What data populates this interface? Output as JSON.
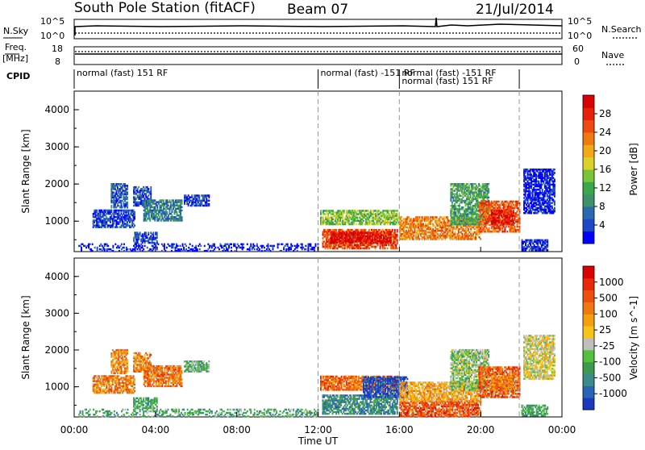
{
  "header": {
    "station": "South Pole Station (fitACF)",
    "beam": "Beam 07",
    "date": "21/Jul/2014"
  },
  "strips": {
    "nsky_label": "N.Sky",
    "nsearch_label": "N.Search",
    "nsky_ticks": [
      "10^5",
      "10^0"
    ],
    "nsearch_ticks": [
      "10^5",
      "10^0"
    ],
    "freq_label_top": "Freq.",
    "freq_label_bottom": "[MHz]",
    "freq_ticks": [
      "18",
      "8"
    ],
    "nave_label": "Nave",
    "nave_ticks": [
      "60",
      "0"
    ],
    "cpid_label": "CPID",
    "cpid_segments": [
      {
        "text": "normal (fast) 151 RF",
        "start_h": 0,
        "row": 0
      },
      {
        "text": "normal (fast) -151 RF",
        "start_h": 12.0,
        "row": 0
      },
      {
        "text": "normal (fast) -151 RF",
        "start_h": 16.0,
        "row": 0
      },
      {
        "text": "normal (fast) 151 RF",
        "start_h": 16.0,
        "row": 1
      }
    ],
    "cpid_dividers_h": [
      12.0,
      16.0,
      21.9
    ]
  },
  "chart_data": [
    {
      "type": "heatmap",
      "panel": "power",
      "ylabel": "Slant Range [km]",
      "xlabel": "Time UT",
      "xlim": [
        0,
        24
      ],
      "ylim": [
        180,
        4500
      ],
      "x_ticks": [
        "00:00",
        "04:00",
        "08:00",
        "12:00",
        "16:00",
        "20:00",
        "00:00"
      ],
      "y_ticks": [
        1000,
        2000,
        3000,
        4000
      ],
      "colorbar": {
        "label": "Power [dB]",
        "ticks": [
          "4",
          "8",
          "12",
          "16",
          "20",
          "24",
          "28"
        ],
        "colors": [
          "#0000ff",
          "#1f48c8",
          "#2a6ab0",
          "#3f8f6a",
          "#3aa84a",
          "#7ac43a",
          "#d8d22a",
          "#f2a818",
          "#f07a10",
          "#ee4a10",
          "#e82008",
          "#d80000"
        ]
      },
      "patches": [
        {
          "t0": 0.9,
          "t1": 3.0,
          "r0": 820,
          "r1": 1300,
          "lvl": 0.12
        },
        {
          "t0": 1.8,
          "t1": 2.6,
          "r0": 1350,
          "r1": 2000,
          "lvl": 0.18
        },
        {
          "t0": 2.9,
          "t1": 3.8,
          "r0": 1400,
          "r1": 1900,
          "lvl": 0.15
        },
        {
          "t0": 3.4,
          "t1": 5.3,
          "r0": 1000,
          "r1": 1550,
          "lvl": 0.25
        },
        {
          "t0": 2.9,
          "t1": 4.1,
          "r0": 400,
          "r1": 700,
          "lvl": 0.12
        },
        {
          "t0": 5.4,
          "t1": 6.6,
          "r0": 1400,
          "r1": 1700,
          "lvl": 0.1
        },
        {
          "t0": 0.2,
          "t1": 12.0,
          "r0": 180,
          "r1": 380,
          "lvl": 0.05
        },
        {
          "t0": 12.1,
          "t1": 16.0,
          "r0": 900,
          "r1": 1300,
          "lvl": 0.45
        },
        {
          "t0": 12.2,
          "t1": 15.9,
          "r0": 250,
          "r1": 780,
          "lvl": 0.8
        },
        {
          "t0": 12.6,
          "t1": 15.6,
          "r0": 400,
          "r1": 700,
          "lvl": 0.95
        },
        {
          "t0": 16.0,
          "t1": 20.0,
          "r0": 500,
          "r1": 1100,
          "lvl": 0.7
        },
        {
          "t0": 18.5,
          "t1": 20.4,
          "r0": 900,
          "r1": 2000,
          "lvl": 0.35
        },
        {
          "t0": 19.9,
          "t1": 21.9,
          "r0": 700,
          "r1": 1550,
          "lvl": 0.78
        },
        {
          "t0": 20.5,
          "t1": 21.6,
          "r0": 900,
          "r1": 1300,
          "lvl": 0.92
        },
        {
          "t0": 22.0,
          "t1": 23.3,
          "r0": 200,
          "r1": 500,
          "lvl": 0.08
        },
        {
          "t0": 22.1,
          "t1": 23.6,
          "r0": 1200,
          "r1": 2400,
          "lvl": 0.05
        }
      ]
    },
    {
      "type": "heatmap",
      "panel": "velocity",
      "ylabel": "Slant Range [km]",
      "xlabel": "Time UT",
      "xlim": [
        0,
        24
      ],
      "ylim": [
        180,
        4500
      ],
      "x_ticks": [
        "00:00",
        "04:00",
        "08:00",
        "12:00",
        "16:00",
        "20:00",
        "00:00"
      ],
      "y_ticks": [
        1000,
        2000,
        3000,
        4000
      ],
      "colorbar": {
        "label": "Velocity [m s^-1]",
        "ticks": [
          "1000",
          "500",
          "100",
          "25",
          "-25",
          "-100",
          "-500",
          "-1000"
        ],
        "colors": [
          "#1a38c0",
          "#2a64b8",
          "#3a8c88",
          "#3c9a50",
          "#54c040",
          "#bebebe",
          "#f6c418",
          "#f2a010",
          "#f07810",
          "#ee5010",
          "#e82808",
          "#d80000"
        ]
      },
      "patches": [
        {
          "t0": 0.9,
          "t1": 3.0,
          "r0": 820,
          "r1": 1300,
          "lvl": 0.7
        },
        {
          "t0": 1.8,
          "t1": 2.6,
          "r0": 1350,
          "r1": 2000,
          "lvl": 0.68
        },
        {
          "t0": 2.9,
          "t1": 3.8,
          "r0": 1400,
          "r1": 1900,
          "lvl": 0.7
        },
        {
          "t0": 3.4,
          "t1": 5.3,
          "r0": 1000,
          "r1": 1550,
          "lvl": 0.72
        },
        {
          "t0": 2.9,
          "t1": 4.1,
          "r0": 400,
          "r1": 700,
          "lvl": 0.3
        },
        {
          "t0": 5.4,
          "t1": 6.6,
          "r0": 1400,
          "r1": 1700,
          "lvl": 0.35
        },
        {
          "t0": 0.2,
          "t1": 12.0,
          "r0": 180,
          "r1": 380,
          "lvl": 0.3
        },
        {
          "t0": 12.1,
          "t1": 16.0,
          "r0": 900,
          "r1": 1300,
          "lvl": 0.75
        },
        {
          "t0": 12.2,
          "t1": 15.9,
          "r0": 250,
          "r1": 780,
          "lvl": 0.22
        },
        {
          "t0": 14.2,
          "t1": 16.4,
          "r0": 700,
          "r1": 1250,
          "lvl": 0.05
        },
        {
          "t0": 16.0,
          "t1": 20.0,
          "r0": 180,
          "r1": 600,
          "lvl": 0.8
        },
        {
          "t0": 16.0,
          "t1": 20.0,
          "r0": 600,
          "r1": 1100,
          "lvl": 0.62
        },
        {
          "t0": 18.5,
          "t1": 20.4,
          "r0": 900,
          "r1": 2000,
          "lvl": 0.4
        },
        {
          "t0": 19.9,
          "t1": 21.9,
          "r0": 700,
          "r1": 1550,
          "lvl": 0.78
        },
        {
          "t0": 20.5,
          "t1": 21.6,
          "r0": 900,
          "r1": 1300,
          "lvl": 0.7
        },
        {
          "t0": 22.0,
          "t1": 23.3,
          "r0": 200,
          "r1": 500,
          "lvl": 0.3
        },
        {
          "t0": 22.1,
          "t1": 23.6,
          "r0": 1200,
          "r1": 2400,
          "lvl": 0.5
        }
      ]
    }
  ]
}
